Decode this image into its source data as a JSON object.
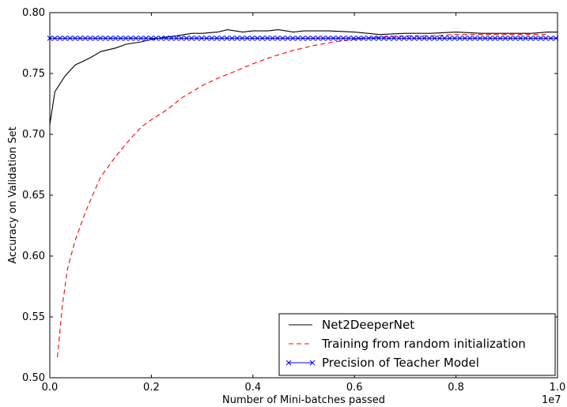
{
  "chart_data": {
    "type": "line",
    "xlabel": "Number of Mini-batches passed",
    "ylabel": "Accuracy on Validation Set",
    "x_offset_label": "1e7",
    "xlim": [
      0.0,
      1.0
    ],
    "ylim": [
      0.5,
      0.8
    ],
    "x_ticks": [
      "0.0",
      "0.2",
      "0.4",
      "0.6",
      "0.8",
      "1.0"
    ],
    "y_ticks": [
      "0.50",
      "0.55",
      "0.60",
      "0.65",
      "0.70",
      "0.75",
      "0.80"
    ],
    "grid": false,
    "legend_position": "lower-right",
    "series": [
      {
        "name": "Net2DeeperNet",
        "color": "#000000",
        "style": "solid",
        "x": [
          0.0,
          0.01,
          0.03,
          0.05,
          0.08,
          0.1,
          0.13,
          0.15,
          0.18,
          0.2,
          0.23,
          0.25,
          0.28,
          0.3,
          0.33,
          0.35,
          0.38,
          0.4,
          0.43,
          0.45,
          0.48,
          0.5,
          0.55,
          0.6,
          0.65,
          0.7,
          0.75,
          0.8,
          0.85,
          0.9,
          0.95,
          0.98,
          1.0
        ],
        "y": [
          0.708,
          0.735,
          0.748,
          0.757,
          0.763,
          0.768,
          0.771,
          0.774,
          0.776,
          0.778,
          0.78,
          0.781,
          0.783,
          0.783,
          0.784,
          0.786,
          0.784,
          0.785,
          0.785,
          0.786,
          0.784,
          0.785,
          0.785,
          0.784,
          0.782,
          0.783,
          0.783,
          0.784,
          0.783,
          0.783,
          0.783,
          0.784,
          0.784
        ]
      },
      {
        "name": "Training from random initialization",
        "color": "#ff0000",
        "style": "dashed",
        "x": [
          0.015,
          0.025,
          0.035,
          0.05,
          0.07,
          0.1,
          0.13,
          0.16,
          0.18,
          0.2,
          0.23,
          0.26,
          0.3,
          0.33,
          0.36,
          0.4,
          0.44,
          0.48,
          0.52,
          0.56,
          0.6,
          0.65,
          0.7,
          0.75,
          0.8,
          0.85,
          0.9,
          0.95,
          0.98
        ],
        "y": [
          0.517,
          0.56,
          0.59,
          0.613,
          0.636,
          0.665,
          0.682,
          0.697,
          0.706,
          0.712,
          0.72,
          0.73,
          0.74,
          0.746,
          0.751,
          0.758,
          0.764,
          0.769,
          0.773,
          0.776,
          0.778,
          0.78,
          0.781,
          0.781,
          0.782,
          0.782,
          0.782,
          0.782,
          0.782
        ]
      },
      {
        "name": "Precision of Teacher Model",
        "color": "#0000ff",
        "style": "solid-marker-x",
        "constant_y": 0.779
      }
    ]
  }
}
